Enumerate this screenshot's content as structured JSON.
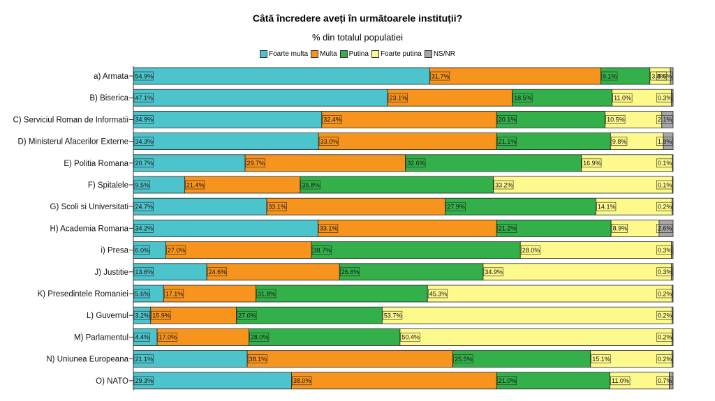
{
  "chart_data": {
    "type": "bar",
    "orientation": "horizontal",
    "stacked": true,
    "title": "Câtă încredere aveți în următoarele instituții?",
    "subtitle": "% din totalul populatiei",
    "xlim": [
      0,
      100
    ],
    "categories": [
      "a) Armata",
      "B) Biserica",
      "C) Serviciul Roman de Informatii",
      "D) Ministerul Afacerilor Externe",
      "E) Politia Romana",
      "F) Spitalele",
      "G) Scoli si Universitati",
      "H) Academia Romana",
      "i) Presa",
      "J) Justitie",
      "K) Presedintele Romaniei",
      "L) Guvernul",
      "M) Parlamentul",
      "N) Uniunea Europeana",
      "O) NATO"
    ],
    "series": [
      {
        "name": "Foarte multa",
        "color": "#4dc3cb",
        "values": [
          54.9,
          47.1,
          34.9,
          34.3,
          20.7,
          9.5,
          24.7,
          34.2,
          6.0,
          13.6,
          5.6,
          3.2,
          4.4,
          21.1,
          29.3
        ],
        "labels": [
          "54.9%",
          "47.1%",
          "34.9%",
          "34.3%",
          "20.7%",
          "9.5%",
          "24.7%",
          "34.2%",
          "6.0%",
          "13.6%",
          "5.6%",
          "3.2%",
          "4.4%",
          "21.1%",
          "29.3%"
        ]
      },
      {
        "name": "Multa",
        "color": "#f7941d",
        "values": [
          31.7,
          23.1,
          32.4,
          33.0,
          29.7,
          21.4,
          33.1,
          33.1,
          27.0,
          24.6,
          17.1,
          15.9,
          17.0,
          38.1,
          38.0
        ],
        "labels": [
          "31.7%",
          "23.1%",
          "32.4%",
          "33.0%",
          "29.7%",
          "21.4%",
          "33.1%",
          "33.1%",
          "27.0%",
          "24.6%",
          "17.1%",
          "15.9%",
          "17.0%",
          "38.1%",
          "38.0%"
        ]
      },
      {
        "name": "Putina",
        "color": "#33b04a",
        "values": [
          9.1,
          18.5,
          20.1,
          21.1,
          32.6,
          35.8,
          27.9,
          21.2,
          38.7,
          26.6,
          31.8,
          27.0,
          28.0,
          25.5,
          21.0
        ],
        "labels": [
          "9.1%",
          "18.5%",
          "20.1%",
          "21.1%",
          "32.6%",
          "35.8%",
          "27.9%",
          "21.2%",
          "38.7%",
          "26.6%",
          "31.8%",
          "27.0%",
          "28.0%",
          "25.5%",
          "21.0%"
        ]
      },
      {
        "name": "Foarte putina",
        "color": "#fdf98c",
        "values": [
          3.8,
          11.0,
          10.5,
          9.8,
          16.9,
          33.2,
          14.1,
          8.9,
          28.0,
          34.9,
          45.3,
          53.7,
          50.4,
          15.1,
          11.0
        ],
        "labels": [
          "3.8%",
          "11.0%",
          "10.5%",
          "9.8%",
          "16.9%",
          "33.2%",
          "14.1%",
          "8.9%",
          "28.0%",
          "34.9%",
          "45.3%",
          "53.7%",
          "50.4%",
          "15.1%",
          "11.0%"
        ]
      },
      {
        "name": "NS/NR",
        "color": "#a6a6a6",
        "values": [
          0.5,
          0.3,
          2.1,
          1.8,
          0.1,
          0.1,
          0.2,
          2.6,
          0.3,
          0.3,
          0.2,
          0.2,
          0.2,
          0.2,
          0.7
        ],
        "labels": [
          "0.5%",
          "0.3%",
          "2.1%",
          "1.8%",
          "0.1%",
          "0.1%",
          "0.2%",
          "2.6%",
          "0.3%",
          "0.3%",
          "0.2%",
          "0.2%",
          "0.2%",
          "0.2%",
          "0.7%"
        ]
      }
    ]
  }
}
